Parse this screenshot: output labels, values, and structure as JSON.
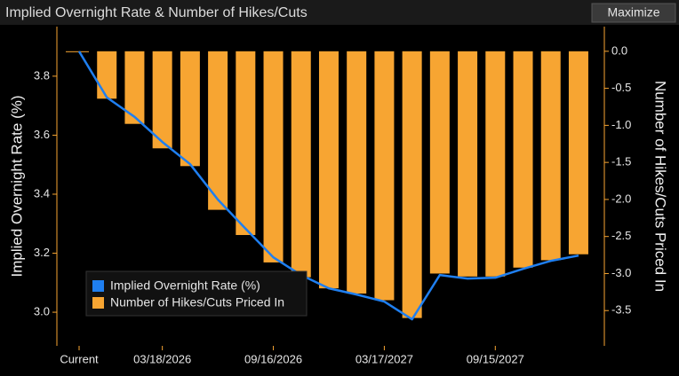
{
  "chart_data": {
    "type": "bar_line",
    "title": "Implied Overnight Rate & Number of Hikes/Cuts",
    "ylabel": "Implied Overnight Rate (%)",
    "y2label": "Number of Hikes/Cuts Priced In",
    "categories": [
      "Current",
      null,
      null,
      "03/18/2026",
      null,
      null,
      null,
      "09/16/2026",
      null,
      null,
      null,
      "03/17/2027",
      null,
      null,
      null,
      "09/15/2027",
      null,
      null,
      null
    ],
    "series": [
      {
        "name": "Implied Overnight Rate (%)",
        "type": "line",
        "color": "#1f7ff0",
        "axis": "y",
        "values": [
          3.884,
          3.728,
          3.662,
          3.577,
          3.502,
          3.382,
          3.283,
          3.186,
          3.126,
          3.081,
          3.06,
          3.036,
          2.976,
          3.126,
          3.114,
          3.117,
          3.147,
          3.174,
          3.192
        ]
      },
      {
        "name": "Number of Hikes/Cuts Priced In",
        "type": "bar",
        "color": "#f7a532",
        "axis": "y2",
        "values": [
          0,
          -0.64,
          -0.98,
          -1.31,
          -1.55,
          -2.14,
          -2.48,
          -2.85,
          -3.05,
          -3.2,
          -3.27,
          -3.36,
          -3.6,
          -3.0,
          -3.04,
          -3.04,
          -2.92,
          -2.82,
          -2.74
        ]
      }
    ],
    "ylim": [
      2.886,
      3.968
    ],
    "yticks": [
      {
        "value": 3.0,
        "label": "3.0"
      },
      3.2,
      3.4,
      3.6,
      3.8
    ],
    "y2lim": [
      -3.976,
      0.333
    ],
    "y2ticks": [
      {
        "value": -3.5,
        "label": "-3.5"
      },
      {
        "value": -3.0,
        "label": "-3.0"
      },
      -2.5,
      {
        "value": -2.0,
        "label": "-2.0"
      },
      -1.5,
      {
        "value": -1.0,
        "label": "-1.0"
      },
      -0.5,
      {
        "value": 0,
        "label": "0.0"
      }
    ],
    "legend": "lower-left",
    "axis_color": "#f7a532"
  },
  "button": "Maximize"
}
